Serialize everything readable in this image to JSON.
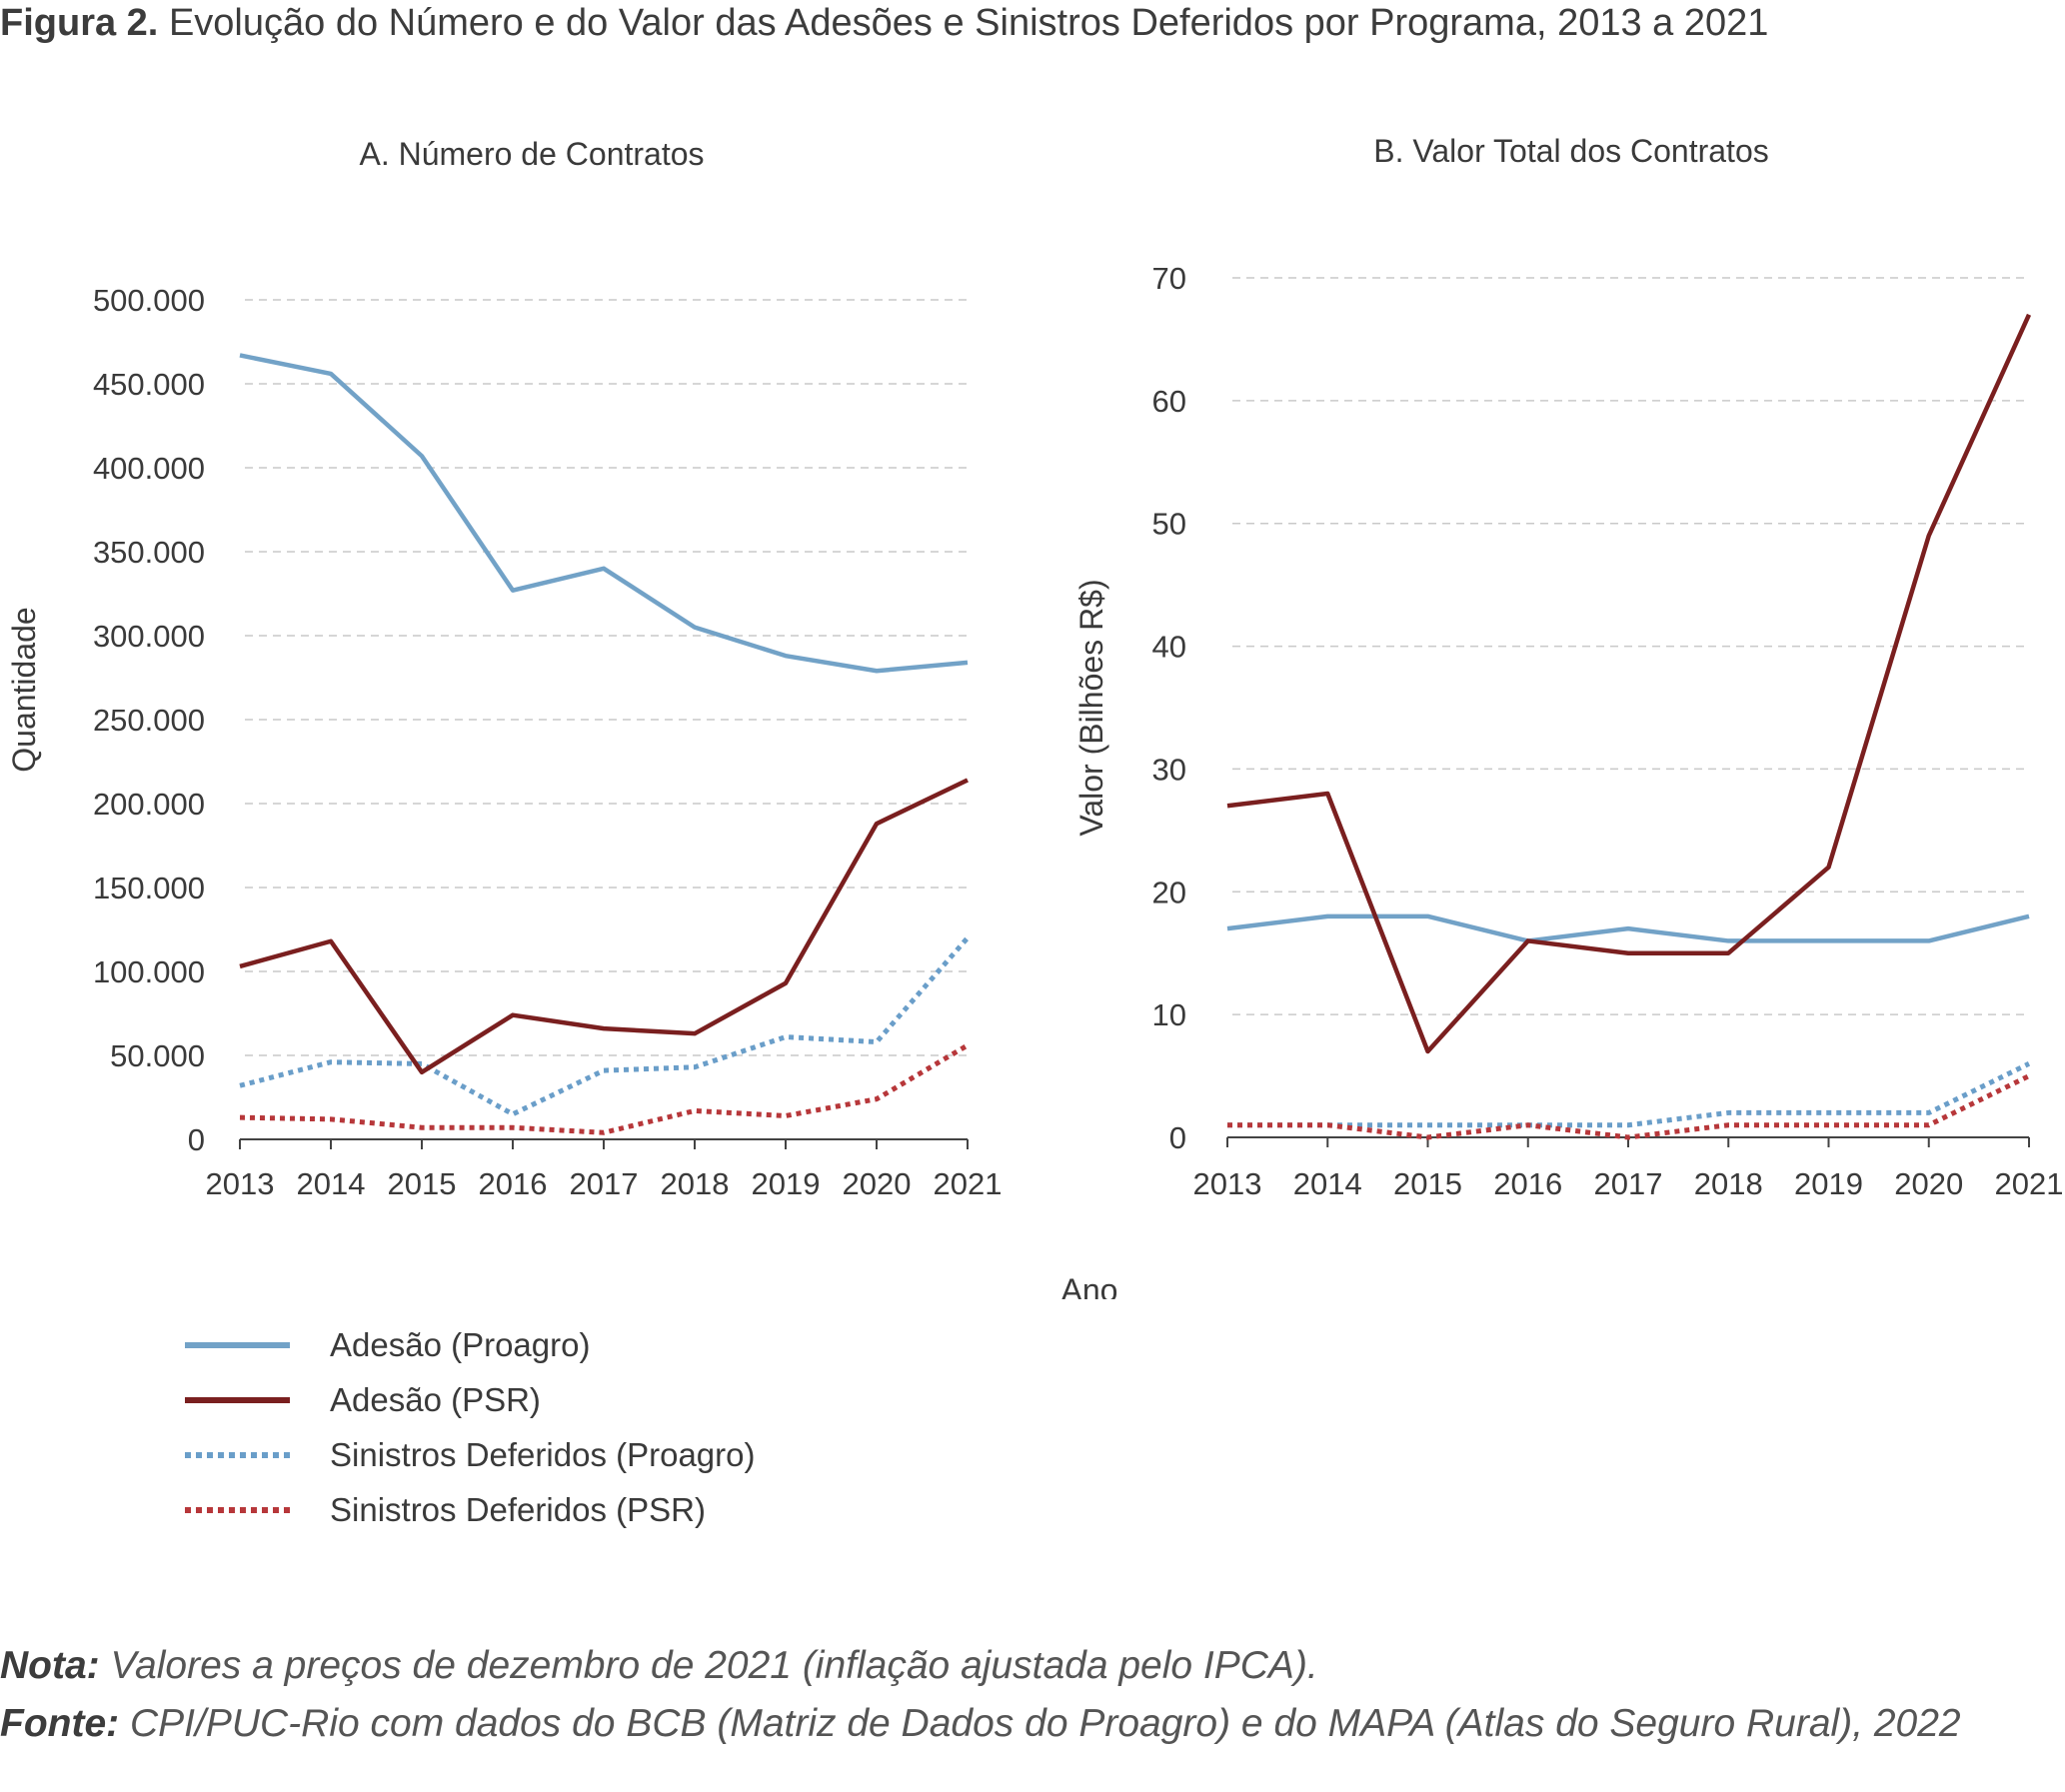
{
  "figure": {
    "label": "Figura 2.",
    "title": "Evolução do Número e do Valor das Adesões e Sinistros Deferidos por Programa, 2013 a 2021"
  },
  "shared_xlabel": "Ano",
  "legend": [
    {
      "name": "Adesão (Proagro)",
      "color": "#72a2c7",
      "style": "solid"
    },
    {
      "name": "Adesão (PSR)",
      "color": "#7a1f1f",
      "style": "solid"
    },
    {
      "name": "Sinistros Deferidos (Proagro)",
      "color": "#6a9ec9",
      "style": "dotted"
    },
    {
      "name": "Sinistros Deferidos (PSR)",
      "color": "#b7373a",
      "style": "dotted"
    }
  ],
  "chart_data": [
    {
      "type": "line",
      "title": "A. Número de Contratos",
      "xlabel": "",
      "ylabel": "Quantidade",
      "x": [
        "2013",
        "2014",
        "2015",
        "2016",
        "2017",
        "2018",
        "2019",
        "2020",
        "2021"
      ],
      "ylim": [
        0,
        500000
      ],
      "yticks": [
        0,
        50000,
        100000,
        150000,
        200000,
        250000,
        300000,
        350000,
        400000,
        450000,
        500000
      ],
      "ytick_labels": [
        "0",
        "50.000",
        "100.000",
        "150.000",
        "200.000",
        "250.000",
        "300.000",
        "350.000",
        "400.000",
        "450.000",
        "500.000"
      ],
      "grid": true,
      "series": [
        {
          "name": "Adesão (Proagro)",
          "values": [
            467000,
            456000,
            407000,
            327000,
            340000,
            305000,
            288000,
            279000,
            284000
          ]
        },
        {
          "name": "Adesão (PSR)",
          "values": [
            103000,
            118000,
            40000,
            74000,
            66000,
            63000,
            93000,
            188000,
            214000
          ]
        },
        {
          "name": "Sinistros Deferidos (Proagro)",
          "values": [
            32000,
            46000,
            45000,
            15000,
            41000,
            43000,
            61000,
            58000,
            120000
          ]
        },
        {
          "name": "Sinistros Deferidos (PSR)",
          "values": [
            13000,
            12000,
            7000,
            7000,
            4000,
            17000,
            14000,
            24000,
            56000
          ]
        }
      ]
    },
    {
      "type": "line",
      "title": "B. Valor Total dos Contratos",
      "xlabel": "",
      "ylabel": "Valor (Bilhões R$)",
      "x": [
        "2013",
        "2014",
        "2015",
        "2016",
        "2017",
        "2018",
        "2019",
        "2020",
        "2021"
      ],
      "ylim": [
        0,
        70
      ],
      "yticks": [
        0,
        10,
        20,
        30,
        40,
        50,
        60,
        70
      ],
      "ytick_labels": [
        "0",
        "10",
        "20",
        "30",
        "40",
        "50",
        "60",
        "70"
      ],
      "grid": true,
      "series": [
        {
          "name": "Adesão (Proagro)",
          "values": [
            17,
            18,
            18,
            16,
            17,
            16,
            16,
            16,
            18
          ]
        },
        {
          "name": "Adesão (PSR)",
          "values": [
            27,
            28,
            7,
            16,
            15,
            15,
            22,
            49,
            67
          ]
        },
        {
          "name": "Sinistros Deferidos (Proagro)",
          "values": [
            1,
            1,
            1,
            1,
            1,
            2,
            2,
            2,
            6
          ]
        },
        {
          "name": "Sinistros Deferidos (PSR)",
          "values": [
            1,
            1,
            0,
            1,
            0,
            1,
            1,
            1,
            5
          ]
        }
      ]
    }
  ],
  "notes": {
    "nota_label": "Nota:",
    "nota_text": " Valores a preços de dezembro de 2021 (inflação ajustada pelo IPCA).",
    "fonte_label": "Fonte:",
    "fonte_text": " CPI/PUC-Rio com dados do BCB (Matriz de Dados do Proagro) e do MAPA (Atlas do Seguro Rural), 2022"
  }
}
